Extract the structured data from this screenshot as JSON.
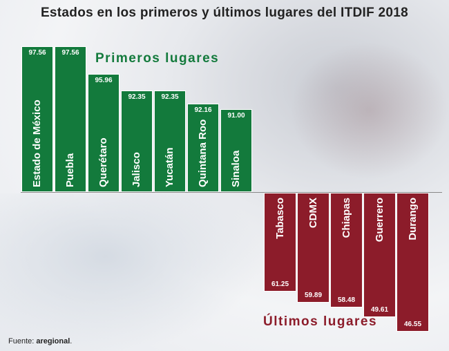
{
  "chart_data": {
    "type": "bar",
    "title": "Estados en los primeros y últimos lugares del ITDIF 2018",
    "series": [
      {
        "name": "Primeros lugares",
        "color": "#137a3c",
        "categories": [
          "Estado de México",
          "Puebla",
          "Querétaro",
          "Jalisco",
          "Yucatán",
          "Quintana Roo",
          "Sinaloa"
        ],
        "values": [
          97.56,
          97.56,
          95.96,
          92.35,
          92.35,
          92.16,
          91.0
        ],
        "labels": [
          "97.56",
          "97.56",
          "95.96",
          "92.35",
          "92.35",
          "92.16",
          "91.00"
        ]
      },
      {
        "name": "Últimos lugares",
        "color": "#8c1c2a",
        "categories": [
          "Tabasco",
          "CDMX",
          "Chiapas",
          "Guerrero",
          "Durango"
        ],
        "values": [
          61.25,
          59.89,
          58.48,
          49.61,
          46.55
        ],
        "labels": [
          "61.25",
          "59.89",
          "58.48",
          "49.61",
          "46.55"
        ]
      }
    ],
    "xlabel": "",
    "ylabel": ""
  },
  "source": {
    "prefix": "Fuente: ",
    "name": "aregional",
    "suffix": "."
  }
}
